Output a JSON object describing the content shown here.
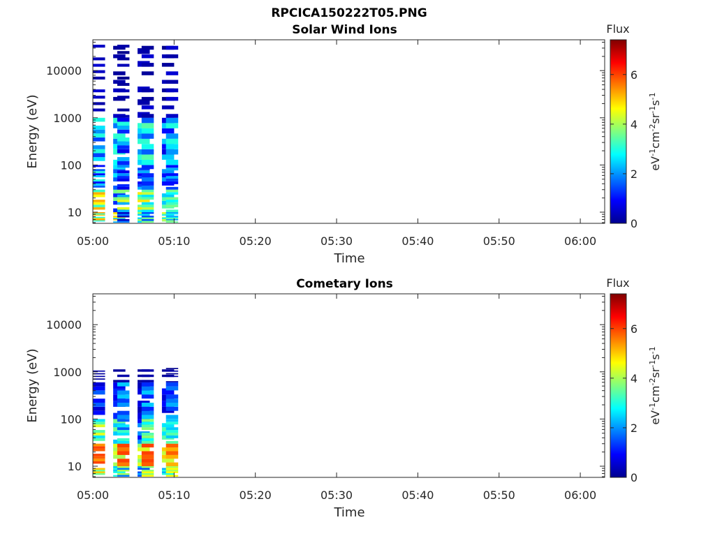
{
  "figure": {
    "title": "RPCICA150222T05.PNG"
  },
  "colorbar": {
    "label": "Flux",
    "unit_parts": [
      "eV",
      "-1",
      "cm",
      "-2",
      "sr",
      "-1",
      "s",
      "-1"
    ],
    "ticks": [
      "0",
      "2",
      "4",
      "6"
    ],
    "range": [
      0,
      7.4
    ],
    "colormap": "jet"
  },
  "chart_data": [
    {
      "type": "heatmap",
      "title": "Solar Wind Ions",
      "xlabel": "Time",
      "ylabel": "Energy (eV)",
      "yscale": "log",
      "xlim": [
        "05:00",
        "06:03"
      ],
      "ylim": [
        5.8,
        45000
      ],
      "xticks": [
        "05:00",
        "05:10",
        "05:20",
        "05:30",
        "05:40",
        "05:50",
        "06:00"
      ],
      "yticks": [
        "10",
        "100",
        "1000",
        "10000"
      ],
      "time_bins": [
        "05:00",
        "05:02",
        "05:03",
        "05:05",
        "05:06",
        "05:08",
        "05:09"
      ],
      "energy_bands": [
        {
          "range": [
            6,
            10
          ],
          "values": [
            [
              5.0,
              3.0,
              5.3
            ],
            [
              2.2,
              4.6,
              5.0
            ],
            [
              1.8,
              0.5
            ],
            [
              2.5,
              4.0
            ],
            [
              3.6,
              1.5
            ],
            [
              2.6,
              3.8,
              4.4
            ],
            [
              3.5,
              2.6,
              2.1
            ]
          ]
        },
        {
          "range": [
            10,
            30
          ],
          "values": [
            [
              4.6,
              5.2,
              3.2
            ],
            [
              1.2,
              3.6
            ],
            [
              2.2,
              4.4,
              3.8
            ],
            [
              3.0,
              4.8,
              3.6
            ],
            [
              2.6,
              4.2,
              3.4
            ],
            [
              2.4,
              3.4
            ],
            [
              3.2,
              2.8,
              3.6
            ]
          ]
        },
        {
          "range": [
            30,
            100
          ],
          "values": [
            [
              3.0,
              1.6,
              2.4,
              1.0
            ],
            [
              1.6,
              2.6
            ],
            [
              0.8,
              1.2,
              2.0
            ],
            [
              2.2,
              1.4,
              0.9
            ],
            [
              1.8,
              1.2
            ],
            [
              2.0,
              1.0
            ],
            [
              1.4,
              2.2,
              1.0
            ]
          ]
        },
        {
          "range": [
            100,
            1000
          ],
          "values": [
            [
              2.0,
              2.6,
              1.4,
              3.0
            ],
            [
              2.8,
              1.8,
              3.1
            ],
            [
              1.2,
              2.2,
              3.0,
              0.8
            ],
            [
              2.5,
              3.1,
              2.0
            ],
            [
              2.9,
              3.4,
              1.6
            ],
            [
              1.0,
              2.4,
              0.7
            ],
            [
              2.6,
              3.0,
              2.0
            ]
          ]
        },
        {
          "range": [
            1000,
            42000
          ],
          "values": [
            [
              0.6,
              0.4,
              0.3,
              0.5
            ],
            [
              0.5,
              0.3,
              0.2
            ],
            [
              0.4,
              0.2,
              0.1,
              0.3
            ],
            [
              0.5,
              0.3
            ],
            [
              0.3,
              0.6,
              0.2
            ],
            [
              0.2,
              0.4,
              0.1
            ],
            [
              0.5,
              0.3,
              0.6
            ]
          ]
        }
      ]
    },
    {
      "type": "heatmap",
      "title": "Cometary Ions",
      "xlabel": "Time",
      "ylabel": "Energy (eV)",
      "yscale": "log",
      "xlim": [
        "05:00",
        "06:03"
      ],
      "ylim": [
        5.8,
        45000
      ],
      "xticks": [
        "05:00",
        "05:10",
        "05:20",
        "05:30",
        "05:40",
        "05:50",
        "06:00"
      ],
      "yticks": [
        "10",
        "100",
        "1000",
        "10000"
      ],
      "time_bins": [
        "05:00",
        "05:02",
        "05:03",
        "05:05",
        "05:06",
        "05:08",
        "05:09"
      ],
      "energy_bands": [
        {
          "range": [
            6,
            10
          ],
          "values": [
            [
              5.0,
              3.6
            ],
            [
              3.0,
              2.4
            ],
            [
              1.8,
              4.0
            ],
            [
              1.5,
              2.2
            ],
            [
              4.6,
              3.8
            ],
            [
              2.2,
              3.0
            ],
            [
              4.6,
              4.0
            ]
          ]
        },
        {
          "range": [
            10,
            30
          ],
          "values": [
            [
              5.8,
              6.0,
              5.4
            ],
            [
              4.0,
              4.4
            ],
            [
              5.6,
              6.0
            ],
            [
              4.4,
              3.8
            ],
            [
              5.8,
              6.0
            ],
            [
              5.0,
              4.2
            ],
            [
              5.2,
              5.8
            ]
          ]
        },
        {
          "range": [
            30,
            100
          ],
          "values": [
            [
              4.4,
              3.4,
              2.6
            ],
            [
              2.4,
              3.6
            ],
            [
              2.6,
              3.2,
              1.6
            ],
            [
              2.0,
              1.0
            ],
            [
              3.4,
              2.8,
              3.8
            ],
            [
              2.6,
              3.4
            ],
            [
              3.4,
              3.0,
              2.4
            ]
          ]
        },
        {
          "range": [
            100,
            600
          ],
          "values": [
            [
              1.6,
              1.0,
              0.6
            ],
            [
              1.2,
              0.8
            ],
            [
              2.0,
              1.4,
              2.4
            ],
            [
              0.7,
              0.4
            ],
            [
              2.4,
              1.8,
              1.2
            ],
            [
              1.0,
              0.6
            ],
            [
              2.2,
              1.8,
              1.4
            ]
          ]
        },
        {
          "range": [
            600,
            1300
          ],
          "values": [
            [
              0.3,
              0.2
            ],
            [
              0.2
            ],
            [
              0.3
            ],
            [
              0.2
            ],
            [
              0.3
            ],
            [
              0.2
            ],
            [
              0.3,
              0.1
            ]
          ]
        }
      ]
    }
  ]
}
